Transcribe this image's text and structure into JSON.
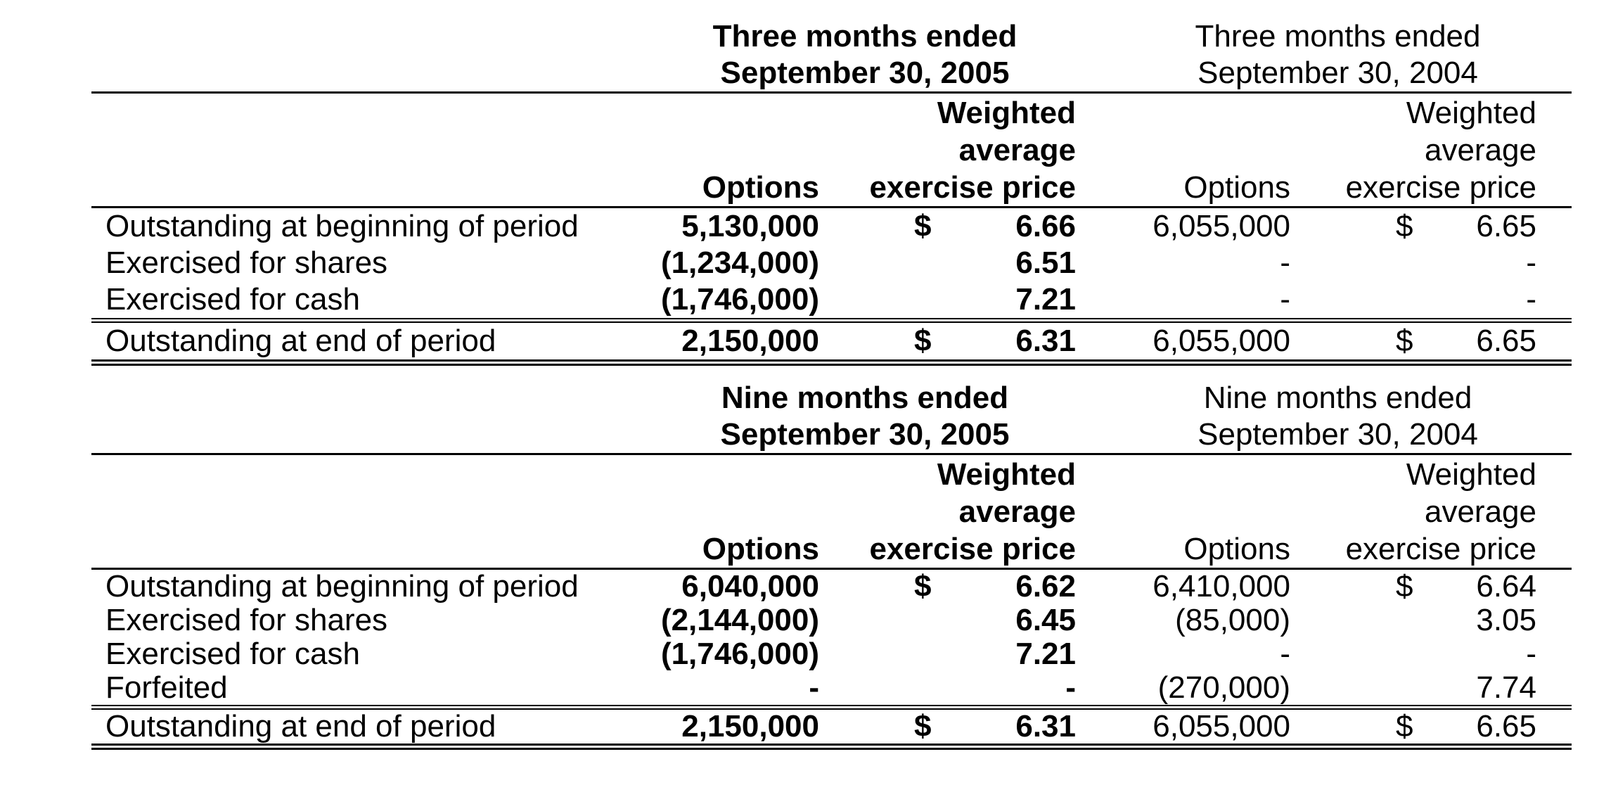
{
  "colors": {
    "background": "#ffffff",
    "text": "#000000",
    "rules": "#000000"
  },
  "tables": [
    {
      "id": "three-months",
      "period_2005": {
        "line1": "Three months ended",
        "line2": "September 30, 2005"
      },
      "period_2004": {
        "line1": "Three months ended",
        "line2": "September 30, 2004"
      },
      "columns_2005": {
        "options_label": "Options",
        "wap_line1": "Weighted",
        "wap_line2": "average",
        "wap_line3": "exercise price"
      },
      "columns_2004": {
        "options_label": "Options",
        "wap_line1": "Weighted",
        "wap_line2": "average",
        "wap_line3": "exercise price"
      },
      "rows": [
        {
          "label": "Outstanding at beginning of period",
          "options_2005": "5,130,000",
          "currency_2005": "$",
          "price_2005": "6.66",
          "options_2004": "6,055,000",
          "currency_2004": "$",
          "price_2004": "6.65"
        },
        {
          "label": "Exercised for shares",
          "options_2005": "(1,234,000)",
          "currency_2005": "",
          "price_2005": "6.51",
          "options_2004": "-",
          "currency_2004": "",
          "price_2004": "-"
        },
        {
          "label": "Exercised for cash",
          "options_2005": "(1,746,000)",
          "currency_2005": "",
          "price_2005": "7.21",
          "options_2004": "-",
          "currency_2004": "",
          "price_2004": "-"
        },
        {
          "label": "Outstanding at end of period",
          "options_2005": "2,150,000",
          "currency_2005": "$",
          "price_2005": "6.31",
          "options_2004": "6,055,000",
          "currency_2004": "$",
          "price_2004": "6.65"
        }
      ]
    },
    {
      "id": "nine-months",
      "period_2005": {
        "line1": "Nine months ended",
        "line2": "September 30, 2005"
      },
      "period_2004": {
        "line1": "Nine months ended",
        "line2": "September 30, 2004"
      },
      "columns_2005": {
        "options_label": "Options",
        "wap_line1": "Weighted",
        "wap_line2": "average",
        "wap_line3": "exercise price"
      },
      "columns_2004": {
        "options_label": "Options",
        "wap_line1": "Weighted",
        "wap_line2": "average",
        "wap_line3": "exercise price"
      },
      "rows": [
        {
          "label": "Outstanding at beginning of period",
          "options_2005": "6,040,000",
          "currency_2005": "$",
          "price_2005": "6.62",
          "options_2004": "6,410,000",
          "currency_2004": "$",
          "price_2004": "6.64"
        },
        {
          "label": "Exercised for shares",
          "options_2005": "(2,144,000)",
          "currency_2005": "",
          "price_2005": "6.45",
          "options_2004": "(85,000)",
          "currency_2004": "",
          "price_2004": "3.05"
        },
        {
          "label": "Exercised for cash",
          "options_2005": "(1,746,000)",
          "currency_2005": "",
          "price_2005": "7.21",
          "options_2004": "-",
          "currency_2004": "",
          "price_2004": "-"
        },
        {
          "label": "Forfeited",
          "options_2005": "-",
          "currency_2005": "",
          "price_2005": "-",
          "options_2004": "(270,000)",
          "currency_2004": "",
          "price_2004": "7.74"
        },
        {
          "label": "Outstanding at end of period",
          "options_2005": "2,150,000",
          "currency_2005": "$",
          "price_2005": "6.31",
          "options_2004": "6,055,000",
          "currency_2004": "$",
          "price_2004": "6.65"
        }
      ]
    }
  ]
}
